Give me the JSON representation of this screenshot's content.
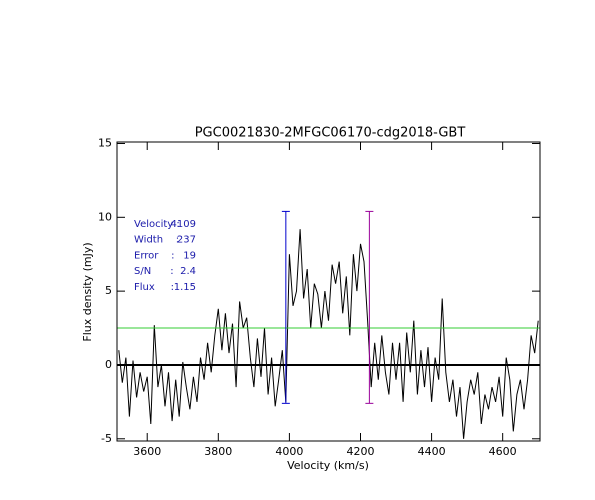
{
  "chart_data": {
    "type": "line",
    "title": "PGC0021830-2MFGC06170-cdg2018-GBT",
    "x_label": "Velocity (km/s)",
    "y_label": "Flux density (mJy)",
    "xlim": [
      3515,
      4705
    ],
    "ylim": [
      -5.15,
      15.1
    ],
    "xticks": [
      3600,
      3800,
      4000,
      4200,
      4400,
      4600
    ],
    "yticks": [
      -5,
      0,
      5,
      10,
      15
    ],
    "x": [
      3520,
      3530,
      3540,
      3550,
      3560,
      3570,
      3580,
      3590,
      3600,
      3610,
      3620,
      3630,
      3640,
      3650,
      3660,
      3670,
      3680,
      3690,
      3700,
      3710,
      3720,
      3730,
      3740,
      3750,
      3760,
      3770,
      3780,
      3790,
      3800,
      3810,
      3820,
      3830,
      3840,
      3850,
      3860,
      3870,
      3880,
      3890,
      3900,
      3910,
      3920,
      3930,
      3940,
      3950,
      3960,
      3970,
      3980,
      3990,
      4000,
      4010,
      4020,
      4030,
      4040,
      4050,
      4060,
      4070,
      4080,
      4090,
      4100,
      4110,
      4120,
      4130,
      4140,
      4150,
      4160,
      4170,
      4180,
      4190,
      4200,
      4210,
      4220,
      4230,
      4240,
      4250,
      4260,
      4270,
      4280,
      4290,
      4300,
      4310,
      4320,
      4330,
      4340,
      4350,
      4360,
      4370,
      4380,
      4390,
      4400,
      4410,
      4420,
      4430,
      4440,
      4450,
      4460,
      4470,
      4480,
      4490,
      4500,
      4510,
      4520,
      4530,
      4540,
      4550,
      4560,
      4570,
      4580,
      4590,
      4600,
      4610,
      4620,
      4630,
      4640,
      4650,
      4660,
      4670,
      4680,
      4690,
      4700
    ],
    "series": [
      {
        "color": "#000000",
        "values": [
          1.0,
          -1.2,
          0.5,
          -3.5,
          0.3,
          -2.2,
          -0.5,
          -1.8,
          -0.8,
          -4.0,
          2.7,
          -1.5,
          0,
          -2.8,
          -0.5,
          -3.8,
          -1.0,
          -3.5,
          0.2,
          -1.5,
          -3.0,
          -0.8,
          -2.5,
          0.5,
          -1.0,
          1.5,
          -0.5,
          2.0,
          3.8,
          1.0,
          3.5,
          0.8,
          2.8,
          -1.5,
          4.3,
          2.5,
          3.2,
          0.5,
          -1.5,
          1.8,
          -0.8,
          2.5,
          -2.0,
          0.5,
          -2.8,
          -1.0,
          1.0,
          -2.5,
          7.5,
          4.0,
          5.0,
          9.2,
          4.5,
          6.5,
          2.5,
          5.5,
          4.8,
          2.5,
          5.0,
          3.0,
          6.8,
          5.5,
          7.0,
          3.5,
          6.0,
          2.0,
          7.5,
          5.0,
          8.2,
          7.0,
          3.0,
          -1.5,
          1.5,
          -1.0,
          2.0,
          -0.5,
          -2.0,
          1.5,
          -1.0,
          1.5,
          -2.5,
          2.2,
          -0.5,
          3.0,
          -2.0,
          1.0,
          -1.5,
          1.2,
          -2.5,
          0.5,
          -1.0,
          4.5,
          -0.5,
          -2.5,
          -1.0,
          -3.5,
          -1.5,
          -5.0,
          -2.5,
          -1.0,
          -2.0,
          -0.5,
          -4.0,
          -2.0,
          -3.0,
          -1.5,
          -2.5,
          -0.8,
          -3.5,
          0.5,
          -1.0,
          -4.5,
          -2.0,
          -1.0,
          -3.0,
          -1.0,
          2.0,
          0.8,
          3.0
        ]
      }
    ],
    "hlines": [
      {
        "y": 0,
        "color": "#000000"
      },
      {
        "y": 2.5,
        "color": "#33cc33"
      }
    ],
    "markers": [
      {
        "x": 3990,
        "color": "#0000cc"
      },
      {
        "x": 4225,
        "color": "#990099"
      }
    ],
    "marker_range": [
      -2.6,
      10.4
    ],
    "annotations": [
      {
        "label": "Velocity :",
        "value": 4109
      },
      {
        "label": "Width    :",
        "value": 237
      },
      {
        "label": "Error    :",
        "value": 19
      },
      {
        "label": "S/N      :",
        "value": 2.4
      },
      {
        "label": "Flux     :",
        "value": 1.15
      }
    ],
    "annotation_color": "#1a1aaa"
  }
}
